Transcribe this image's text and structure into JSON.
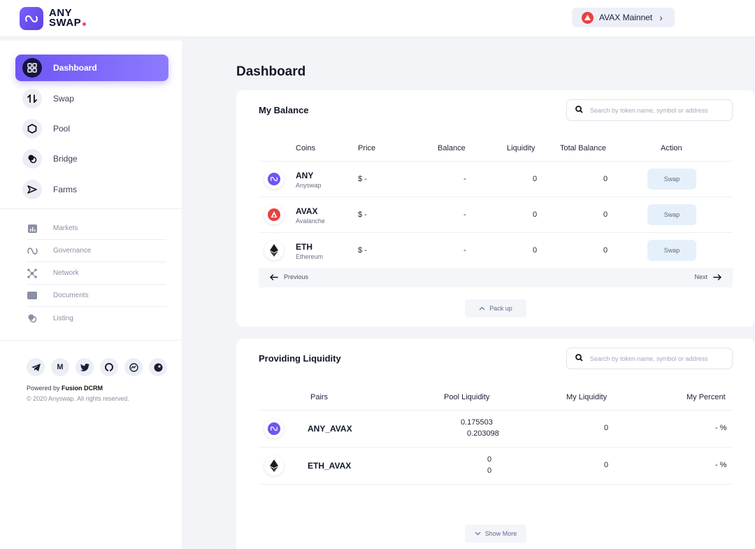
{
  "brand": {
    "line1": "ANY",
    "line2": "SWAP"
  },
  "network": {
    "label": "AVAX Mainnet"
  },
  "sidebar": {
    "main_items": [
      {
        "label": "Dashboard",
        "icon": "grid-icon"
      },
      {
        "label": "Swap",
        "icon": "swap-icon"
      },
      {
        "label": "Pool",
        "icon": "pool-icon"
      },
      {
        "label": "Bridge",
        "icon": "bridge-icon"
      },
      {
        "label": "Farms",
        "icon": "farms-icon"
      }
    ],
    "sub_items": [
      {
        "label": "Markets",
        "icon": "markets-icon"
      },
      {
        "label": "Governance",
        "icon": "governance-icon"
      },
      {
        "label": "Network",
        "icon": "network-icon"
      },
      {
        "label": "Documents",
        "icon": "documents-icon"
      },
      {
        "label": "Listing",
        "icon": "listing-icon"
      }
    ],
    "socials": [
      "telegram-icon",
      "medium-icon",
      "twitter-icon",
      "github-icon",
      "coinmarketcap-icon",
      "coingecko-icon"
    ],
    "powered_prefix": "Powered by",
    "powered_name": "Fusion DCRM",
    "copyright": "© 2020 Anyswap. All rights reserved."
  },
  "page_title": "Dashboard",
  "balance": {
    "title": "My Balance",
    "search_placeholder": "Search by token name, symbol or address",
    "headers": [
      "Coins",
      "Price",
      "Balance",
      "Liquidity",
      "Total Balance",
      "Action"
    ],
    "rows": [
      {
        "symbol": "ANY",
        "name": "Anyswap",
        "price": "$ -",
        "balance": "-",
        "liquidity": "0",
        "total": "0",
        "action": "Swap"
      },
      {
        "symbol": "AVAX",
        "name": "Avalanche",
        "price": "$ -",
        "balance": "-",
        "liquidity": "0",
        "total": "0",
        "action": "Swap"
      },
      {
        "symbol": "ETH",
        "name": "Ethereum",
        "price": "$ -",
        "balance": "-",
        "liquidity": "0",
        "total": "0",
        "action": "Swap"
      }
    ],
    "prev_label": "Previous",
    "next_label": "Next",
    "pack_up_label": "Pack up"
  },
  "liquidity": {
    "title": "Providing Liquidity",
    "search_placeholder": "Search by token name, symbol or address",
    "headers": [
      "Pairs",
      "Pool Liquidity",
      "My Liquidity",
      "My Percent"
    ],
    "rows": [
      {
        "pair": "ANY_AVAX",
        "pool_line1": "0.175503",
        "pool_line2": "0.203098",
        "my_liquidity": "0",
        "my_percent": "- %"
      },
      {
        "pair": "ETH_AVAX",
        "pool_line1": "0",
        "pool_line2": "0",
        "my_liquidity": "0",
        "my_percent": "- %"
      }
    ],
    "show_more_label": "Show More"
  },
  "colors": {
    "accent": "#6e55f5",
    "avax": "#e84142",
    "pink_dot": "#ff3d7f"
  }
}
